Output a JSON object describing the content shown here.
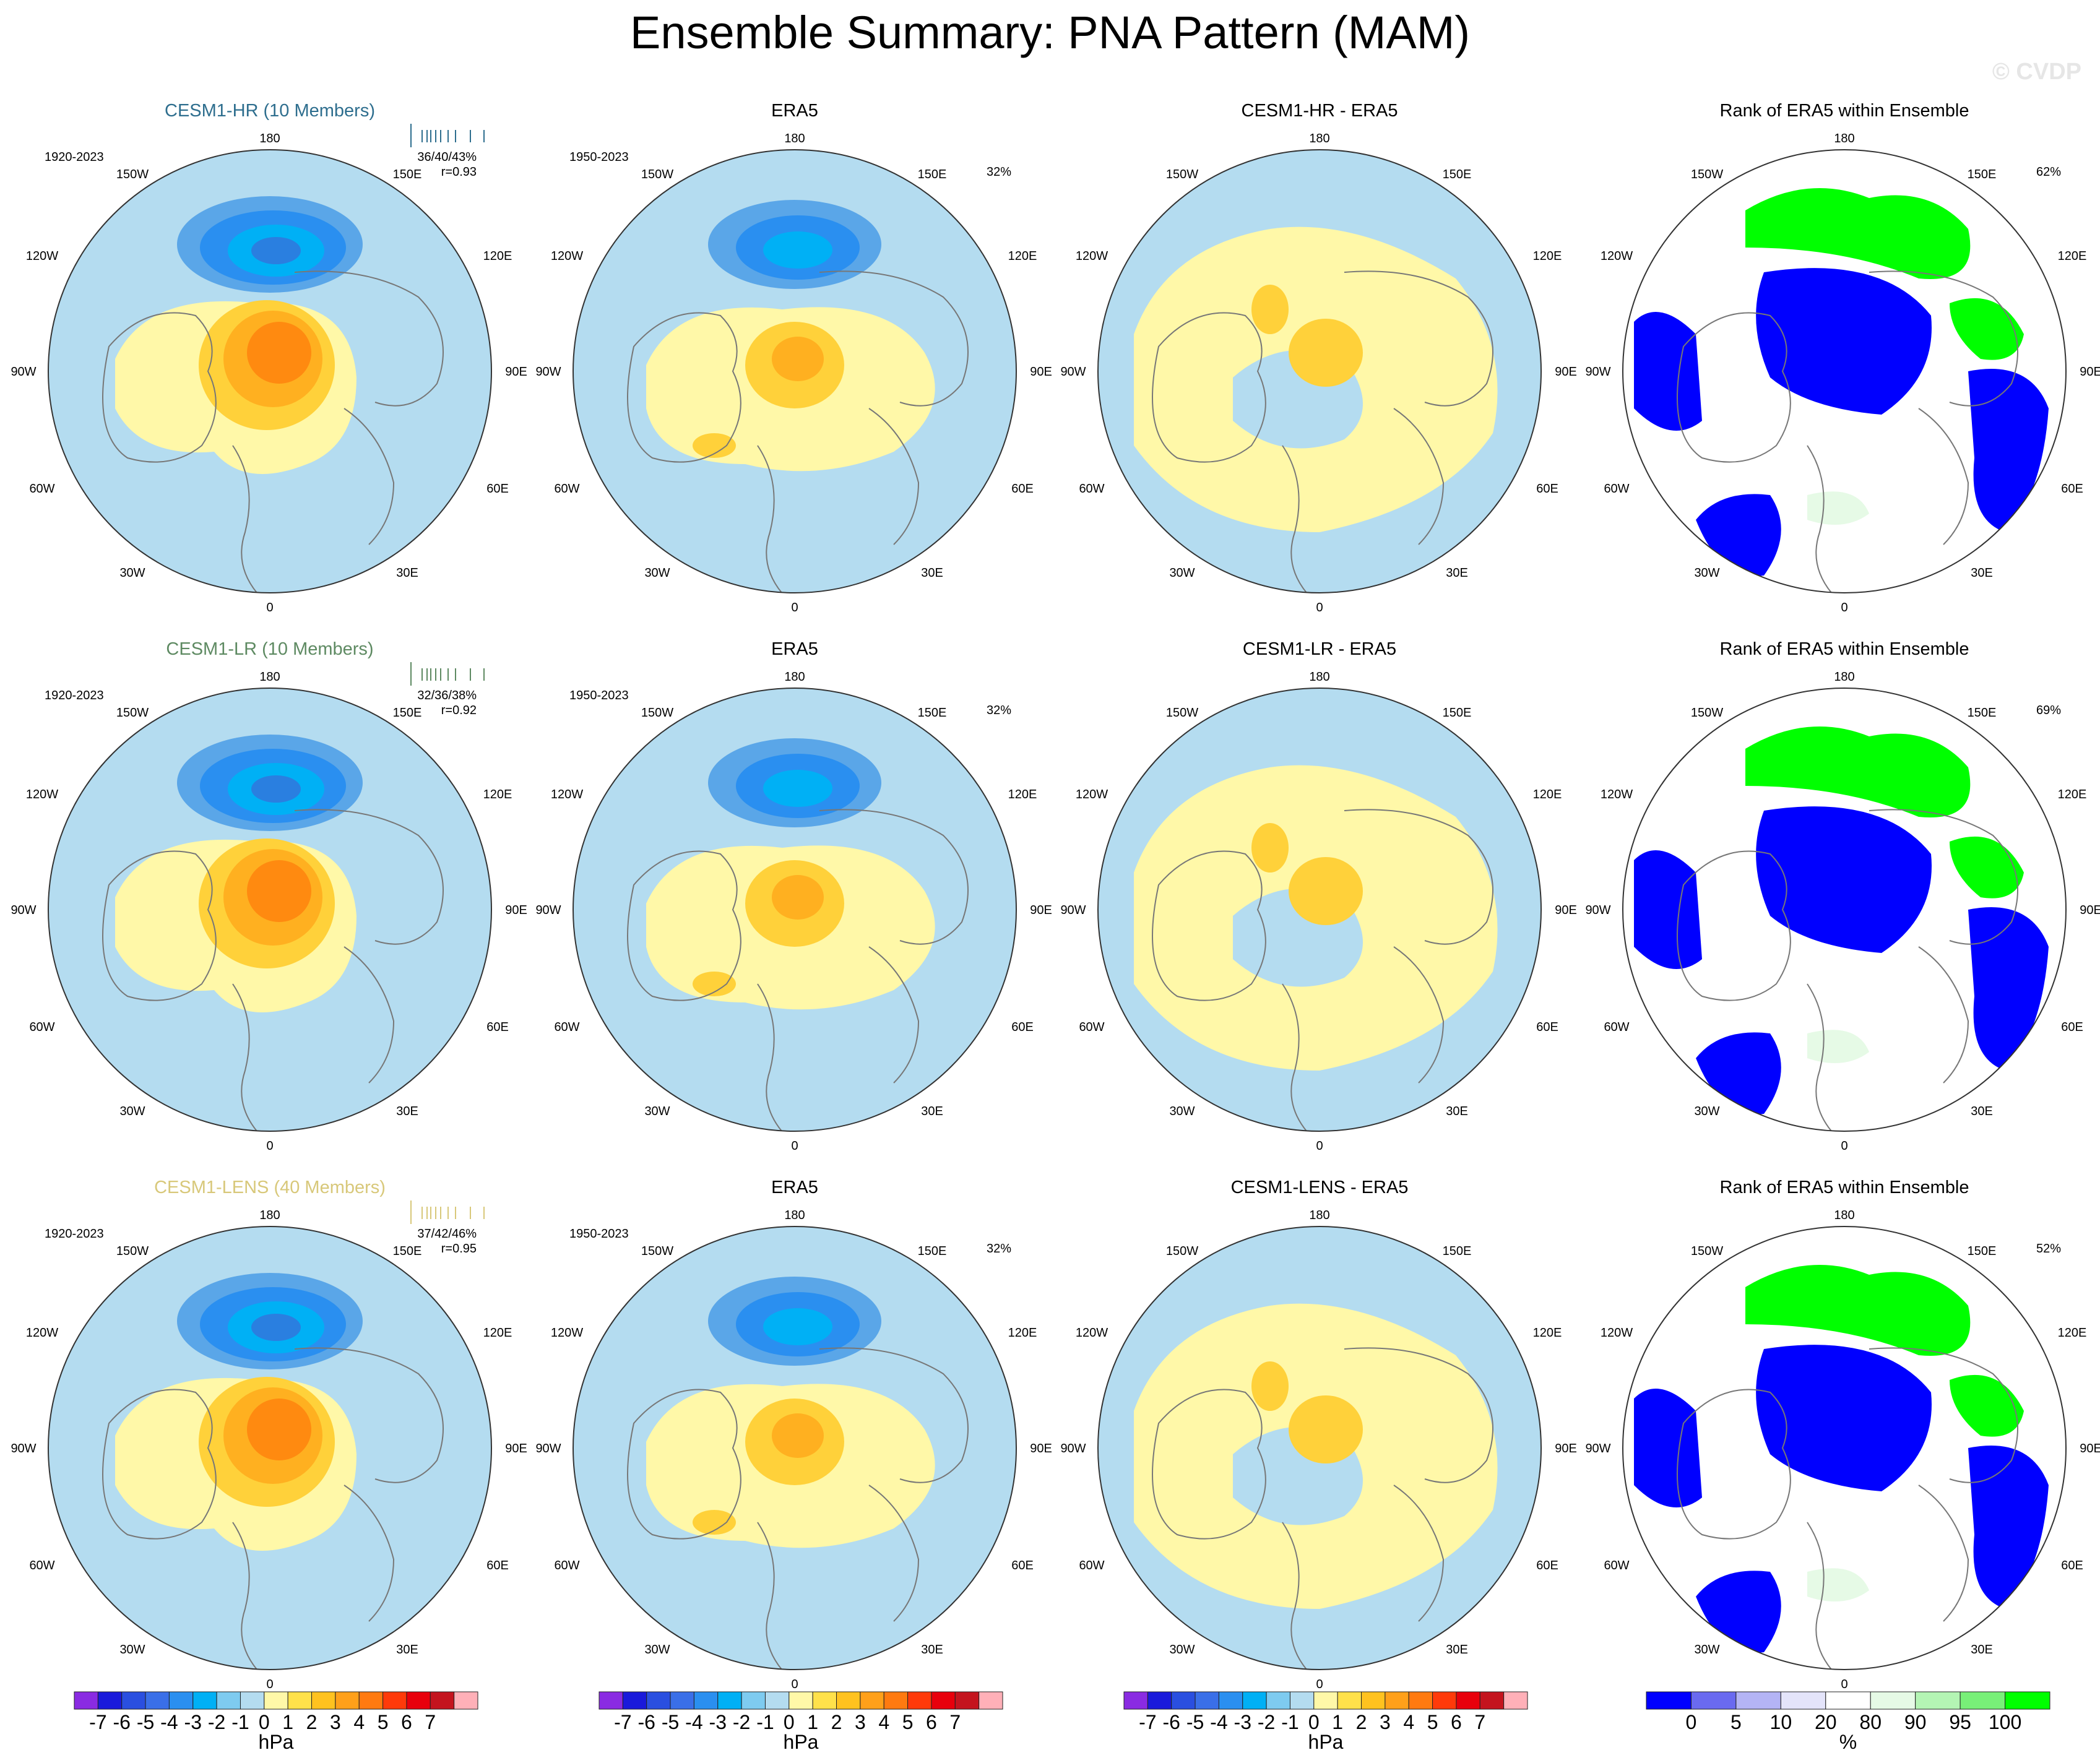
{
  "title": "Ensemble Summary: PNA Pattern (MAM)",
  "watermark": "© CVDP",
  "rows": [
    {
      "model": {
        "title": "CESM1-HR (10 Members)",
        "title_color": "#2e6e8e",
        "period": "1920-2023",
        "stats": "36/40/43%",
        "r": "r=0.93"
      },
      "obs": {
        "title": "ERA5",
        "period": "1950-2023",
        "pct": "32%"
      },
      "diff": {
        "title": "CESM1-HR - ERA5"
      },
      "rank": {
        "title": "Rank of ERA5 within Ensemble",
        "pct": "62%"
      }
    },
    {
      "model": {
        "title": "CESM1-LR (10 Members)",
        "title_color": "#5e8a62",
        "period": "1920-2023",
        "stats": "32/36/38%",
        "r": "r=0.92"
      },
      "obs": {
        "title": "ERA5",
        "period": "1950-2023",
        "pct": "32%"
      },
      "diff": {
        "title": "CESM1-LR - ERA5"
      },
      "rank": {
        "title": "Rank of ERA5 within Ensemble",
        "pct": "69%"
      }
    },
    {
      "model": {
        "title": "CESM1-LENS (40 Members)",
        "title_color": "#d8c87a",
        "period": "1920-2023",
        "stats": "37/42/46%",
        "r": "r=0.95"
      },
      "obs": {
        "title": "ERA5",
        "period": "1950-2023",
        "pct": "32%"
      },
      "diff": {
        "title": "CESM1-LENS - ERA5"
      },
      "rank": {
        "title": "Rank of ERA5 within Ensemble",
        "pct": "52%"
      }
    }
  ],
  "map_labels": {
    "top": "180",
    "bottom": "0",
    "top_left": "150W",
    "top_right": "150E",
    "upper_left": "120W",
    "upper_right": "120E",
    "left": "90W",
    "right": "90E",
    "lower_left": "60W",
    "lower_right": "60E",
    "bottom_left": "30W",
    "bottom_right": "30E"
  },
  "colorbar_hpa": {
    "unit": "hPa",
    "ticks": [
      "-7",
      "-6",
      "-5",
      "-4",
      "-3",
      "-2",
      "-1",
      "0",
      "1",
      "2",
      "3",
      "4",
      "5",
      "6",
      "7"
    ],
    "colors": [
      "#8a2be2",
      "#1a1adb",
      "#2a4fe0",
      "#3a6fe8",
      "#2a8ff0",
      "#00b0f5",
      "#7ecbf0",
      "#b4dcf0",
      "#fff8a8",
      "#ffe14a",
      "#ffc21f",
      "#ffa01a",
      "#ff7a10",
      "#ff3a0a",
      "#e8000c",
      "#c4141e",
      "#ffb0b8"
    ]
  },
  "colorbar_rank": {
    "unit": "%",
    "ticks": [
      "0",
      "5",
      "10",
      "20",
      "80",
      "90",
      "95",
      "100"
    ],
    "colors": [
      "#0000ff",
      "#6a6af0",
      "#b4b4f5",
      "#e4e4fa",
      "#ffffff",
      "#e6fae6",
      "#b4f5b4",
      "#78f078",
      "#00ff00"
    ]
  }
}
